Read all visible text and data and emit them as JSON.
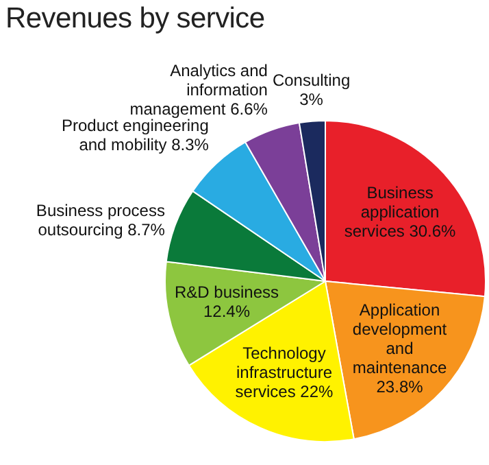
{
  "chart_data": {
    "type": "pie",
    "title": "Revenues by service",
    "categories": [
      "Business application services",
      "Application development and maintenance",
      "Technology infrastructure services",
      "R&D business",
      "Business process outsourcing",
      "Product engineering and mobility",
      "Analytics and information management",
      "Consulting"
    ],
    "values": [
      30.6,
      23.8,
      22,
      12.4,
      8.7,
      8.3,
      6.6,
      3
    ],
    "value_labels": [
      "30.6%",
      "23.8%",
      "22%",
      "12.4%",
      "8.7%",
      "8.3%",
      "6.6%",
      "3%"
    ],
    "colors": [
      "#e8202a",
      "#f7941d",
      "#fff200",
      "#8dc63f",
      "#0a7a3a",
      "#29abe2",
      "#7b3f98",
      "#1b2a5e"
    ]
  }
}
